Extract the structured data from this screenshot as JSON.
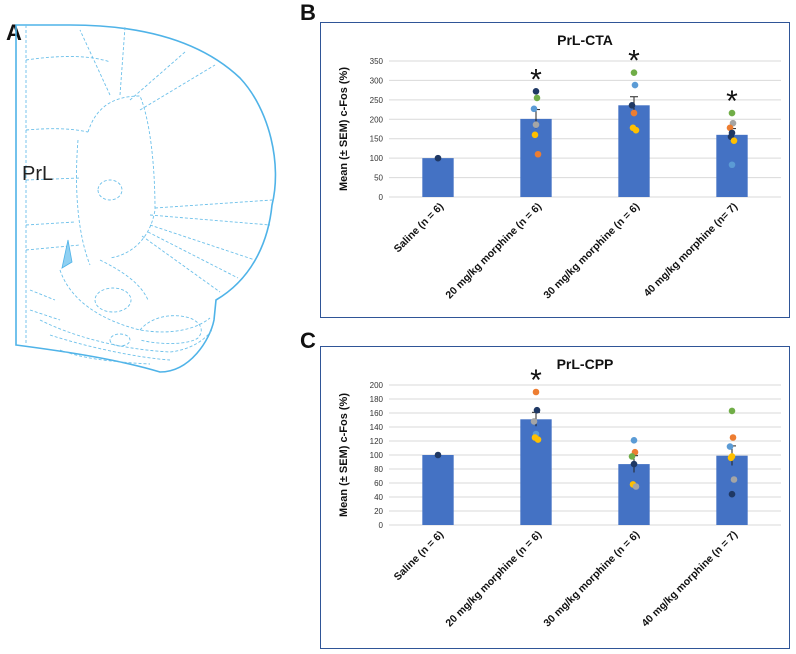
{
  "panels": {
    "a": {
      "letter": "A",
      "region_label": "PrL"
    },
    "b": {
      "letter": "B"
    },
    "c": {
      "letter": "C"
    }
  },
  "colors": {
    "bar": "#4472c4",
    "frame": "#2f5597",
    "brain_outline": "#4fb3e8",
    "gridline": "#d9d9d9",
    "dots": [
      "#1f3864",
      "#70ad47",
      "#5b9bd5",
      "#a5a5a5",
      "#ffc000",
      "#ed7d31"
    ]
  },
  "chart_data": [
    {
      "id": "prl-cta",
      "type": "bar",
      "title": "PrL-CTA",
      "ylabel": "Mean (± SEM) c-Fos (%)",
      "xlabel": "",
      "ylim": [
        0,
        350
      ],
      "yticks": [
        0,
        50,
        100,
        150,
        200,
        250,
        300,
        350
      ],
      "grid": true,
      "categories": [
        "Saline (n = 6)",
        "20 mg/kg morphine (n = 6)",
        "30 mg/kg morphine (n = 6)",
        "40 mg/kg morphine (n= 7)"
      ],
      "values": [
        100,
        201,
        236,
        160
      ],
      "sem": [
        0,
        24,
        22,
        16
      ],
      "significance": [
        "",
        "*",
        "*",
        "*"
      ],
      "points": [
        [
          {
            "y": 100,
            "c": 0
          }
        ],
        [
          {
            "y": 272,
            "c": 0
          },
          {
            "y": 255,
            "c": 1
          },
          {
            "y": 227,
            "c": 2
          },
          {
            "y": 186,
            "c": 3
          },
          {
            "y": 160,
            "c": 4
          },
          {
            "y": 110,
            "c": 5
          }
        ],
        [
          {
            "y": 320,
            "c": 1
          },
          {
            "y": 288,
            "c": 2
          },
          {
            "y": 236,
            "c": 0
          },
          {
            "y": 216,
            "c": 5
          },
          {
            "y": 178,
            "c": 4
          },
          {
            "y": 172,
            "c": 4
          }
        ],
        [
          {
            "y": 216,
            "c": 1
          },
          {
            "y": 190,
            "c": 3
          },
          {
            "y": 178,
            "c": 5
          },
          {
            "y": 165,
            "c": 0
          },
          {
            "y": 155,
            "c": 0
          },
          {
            "y": 145,
            "c": 4
          },
          {
            "y": 83,
            "c": 2
          }
        ]
      ]
    },
    {
      "id": "prl-cpp",
      "type": "bar",
      "title": "PrL-CPP",
      "ylabel": "Mean (± SEM) c-Fos (%)",
      "xlabel": "",
      "ylim": [
        0,
        200
      ],
      "yticks": [
        0,
        20,
        40,
        60,
        80,
        100,
        120,
        140,
        160,
        180,
        200
      ],
      "grid": true,
      "categories": [
        "Saline (n = 6)",
        "20 mg/kg morphine (n = 6)",
        "30 mg/kg morphine (n = 6)",
        "40 mg/kg morphine (n = 7)"
      ],
      "values": [
        100,
        151,
        87,
        99
      ],
      "sem": [
        0,
        10,
        12,
        14
      ],
      "significance": [
        "",
        "*",
        "",
        ""
      ],
      "points": [
        [
          {
            "y": 100,
            "c": 0
          }
        ],
        [
          {
            "y": 190,
            "c": 5
          },
          {
            "y": 164,
            "c": 0
          },
          {
            "y": 148,
            "c": 3
          },
          {
            "y": 130,
            "c": 2
          },
          {
            "y": 125,
            "c": 4
          },
          {
            "y": 122,
            "c": 4
          }
        ],
        [
          {
            "y": 121,
            "c": 2
          },
          {
            "y": 104,
            "c": 5
          },
          {
            "y": 98,
            "c": 1
          },
          {
            "y": 87,
            "c": 0
          },
          {
            "y": 58,
            "c": 4
          },
          {
            "y": 55,
            "c": 3
          }
        ],
        [
          {
            "y": 163,
            "c": 1
          },
          {
            "y": 125,
            "c": 5
          },
          {
            "y": 112,
            "c": 2
          },
          {
            "y": 98,
            "c": 4
          },
          {
            "y": 96,
            "c": 4
          },
          {
            "y": 65,
            "c": 3
          },
          {
            "y": 44,
            "c": 0
          }
        ]
      ]
    }
  ]
}
